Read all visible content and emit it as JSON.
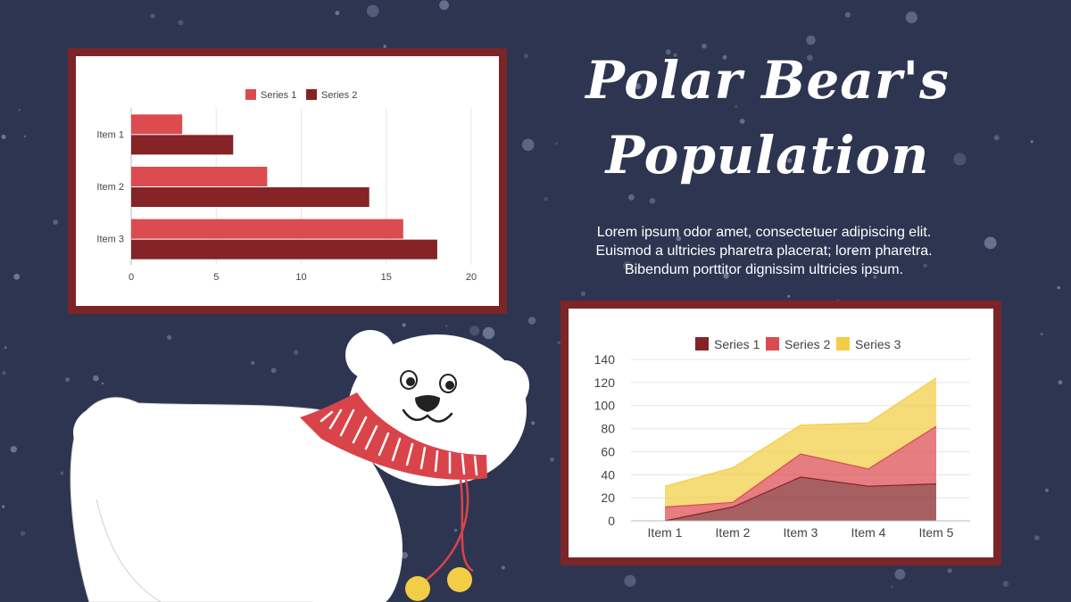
{
  "slide": {
    "title_line1": "Polar Bear's",
    "title_line2": "Population",
    "body_line1": "Lorem ipsum odor amet, consectetuer adipiscing elit.",
    "body_line2": "Euismod a ultricies pharetra placerat; lorem pharetra.",
    "body_line3": "Bibendum porttitor dignissim ultricies ipsum."
  },
  "colors": {
    "background": "#2e3551",
    "frame": "#7b2528",
    "series_red": "#dc4b4f",
    "series_dark": "#852326",
    "series_yellow": "#f3cd45"
  },
  "chart_data": [
    {
      "type": "bar",
      "orientation": "horizontal",
      "categories": [
        "Item 1",
        "Item 2",
        "Item 3"
      ],
      "series": [
        {
          "name": "Series 1",
          "color": "#dc4b4f",
          "values": [
            3,
            8,
            16
          ]
        },
        {
          "name": "Series 2",
          "color": "#852326",
          "values": [
            6,
            14,
            18
          ]
        }
      ],
      "xlim": [
        0,
        20
      ],
      "ticks": [
        0,
        5,
        10,
        15,
        20
      ],
      "grid": true,
      "legend": "top"
    },
    {
      "type": "area",
      "stacked": true,
      "categories": [
        "Item 1",
        "Item 2",
        "Item 3",
        "Item 4",
        "Item 5"
      ],
      "series": [
        {
          "name": "Series 1",
          "color": "#852326",
          "values": [
            0,
            12,
            38,
            30,
            32
          ]
        },
        {
          "name": "Series 2",
          "color": "#dc4b4f",
          "values": [
            12,
            4,
            20,
            15,
            50
          ]
        },
        {
          "name": "Series 3",
          "color": "#f3cd45",
          "values": [
            18,
            30,
            25,
            40,
            42
          ]
        }
      ],
      "ylim": [
        0,
        140
      ],
      "ticks": [
        0,
        20,
        40,
        60,
        80,
        100,
        120,
        140
      ],
      "grid": true,
      "legend": "top"
    }
  ]
}
